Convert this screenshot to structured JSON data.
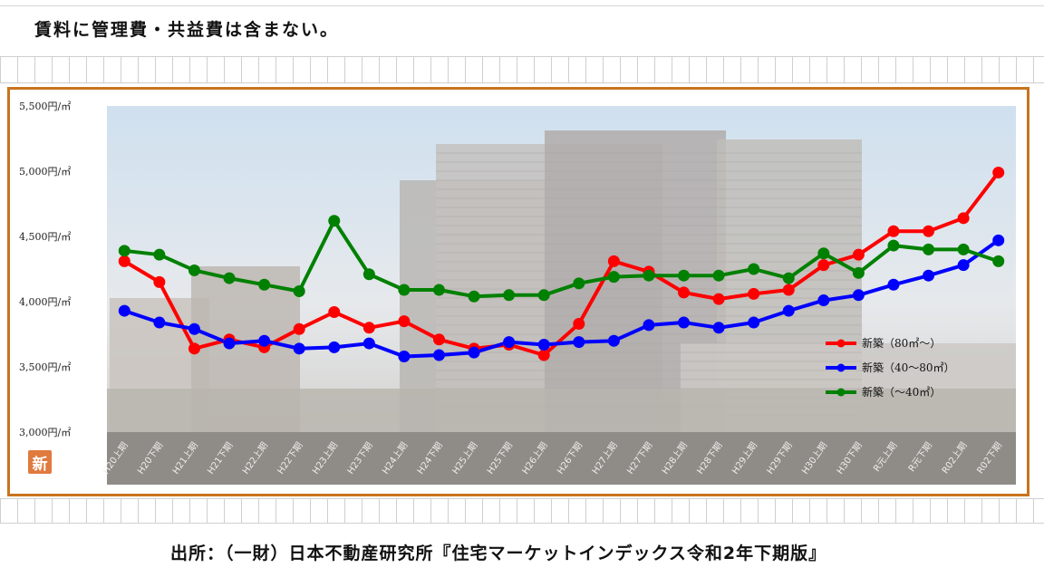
{
  "note": "賃料に管理費・共益費は含まない。",
  "source": "出所：（一財）日本不動産研究所『住宅マーケットインデックス令和2年下期版』",
  "badge": "新",
  "chart_data": {
    "type": "line",
    "categories": [
      "H20上期",
      "H20下期",
      "H21上期",
      "H21下期",
      "H22上期",
      "H22下期",
      "H23上期",
      "H23下期",
      "H24上期",
      "H24下期",
      "H25上期",
      "H25下期",
      "H26上期",
      "H26下期",
      "H27上期",
      "H27下期",
      "H28上期",
      "H28下期",
      "H29上期",
      "H29下期",
      "H30上期",
      "H30下期",
      "R元上期",
      "R元下期",
      "R02上期",
      "R02下期"
    ],
    "ylim": [
      3000,
      5500
    ],
    "yticks": [
      3000,
      3500,
      4000,
      4500,
      5000,
      5500
    ],
    "ytick_labels": [
      "3,000円/㎡",
      "3,500円/㎡",
      "4,000円/㎡",
      "4,500円/㎡",
      "5,000円/㎡",
      "5,500円/㎡"
    ],
    "legend_position": "bottom-right",
    "series": [
      {
        "name": "新築（80㎡〜）",
        "color": "#ff0000",
        "values": [
          4310,
          4150,
          3640,
          3710,
          3650,
          3790,
          3920,
          3800,
          3850,
          3710,
          3640,
          3670,
          3590,
          3830,
          4310,
          4230,
          4070,
          4020,
          4060,
          4090,
          4280,
          4360,
          4540,
          4540,
          4640,
          4990
        ]
      },
      {
        "name": "新築（40〜80㎡）",
        "color": "#0000ff",
        "values": [
          3930,
          3840,
          3790,
          3680,
          3700,
          3640,
          3650,
          3680,
          3580,
          3590,
          3610,
          3690,
          3670,
          3690,
          3700,
          3820,
          3840,
          3800,
          3840,
          3930,
          4010,
          4050,
          4130,
          4200,
          4280,
          4470
        ]
      },
      {
        "name": "新築（〜40㎡）",
        "color": "#008000",
        "values": [
          4390,
          4360,
          4240,
          4180,
          4130,
          4080,
          4620,
          4210,
          4090,
          4090,
          4040,
          4050,
          4050,
          4140,
          4190,
          4200,
          4200,
          4200,
          4250,
          4180,
          4370,
          4220,
          4430,
          4400,
          4400,
          4310
        ]
      }
    ]
  }
}
